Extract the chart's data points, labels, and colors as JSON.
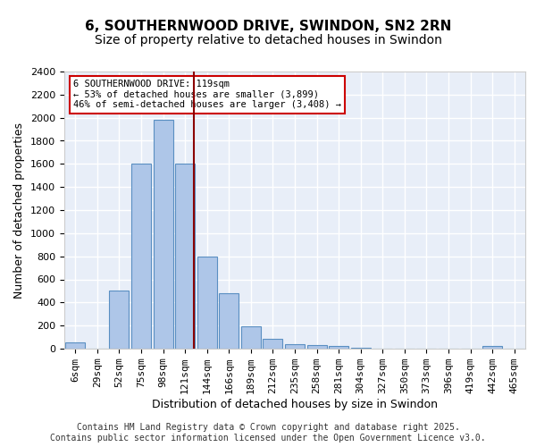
{
  "title": "6, SOUTHERNWOOD DRIVE, SWINDON, SN2 2RN",
  "subtitle": "Size of property relative to detached houses in Swindon",
  "xlabel": "Distribution of detached houses by size in Swindon",
  "ylabel": "Number of detached properties",
  "bar_color": "#aec6e8",
  "bar_edge_color": "#5a8fc2",
  "bg_color": "#e8eef8",
  "grid_color": "#ffffff",
  "vline_value": 121,
  "vline_color": "#8b0000",
  "categories": [
    "6sqm",
    "29sqm",
    "52sqm",
    "75sqm",
    "98sqm",
    "121sqm",
    "144sqm",
    "166sqm",
    "189sqm",
    "212sqm",
    "235sqm",
    "258sqm",
    "281sqm",
    "304sqm",
    "327sqm",
    "350sqm",
    "373sqm",
    "396sqm",
    "419sqm",
    "442sqm",
    "465sqm"
  ],
  "values": [
    55,
    0,
    500,
    1600,
    1980,
    1600,
    800,
    480,
    195,
    85,
    40,
    30,
    20,
    10,
    0,
    0,
    0,
    0,
    0,
    20,
    0
  ],
  "ylim": [
    0,
    2400
  ],
  "yticks": [
    0,
    200,
    400,
    600,
    800,
    1000,
    1200,
    1400,
    1600,
    1800,
    2000,
    2200,
    2400
  ],
  "annotation_text": "6 SOUTHERNWOOD DRIVE: 119sqm\n← 53% of detached houses are smaller (3,899)\n46% of semi-detached houses are larger (3,408) →",
  "annotation_box_color": "#ffffff",
  "annotation_border_color": "#cc0000",
  "footer_text": "Contains HM Land Registry data © Crown copyright and database right 2025.\nContains public sector information licensed under the Open Government Licence v3.0.",
  "title_fontsize": 11,
  "subtitle_fontsize": 10,
  "axis_label_fontsize": 9,
  "tick_fontsize": 8,
  "annotation_fontsize": 7.5,
  "footer_fontsize": 7
}
